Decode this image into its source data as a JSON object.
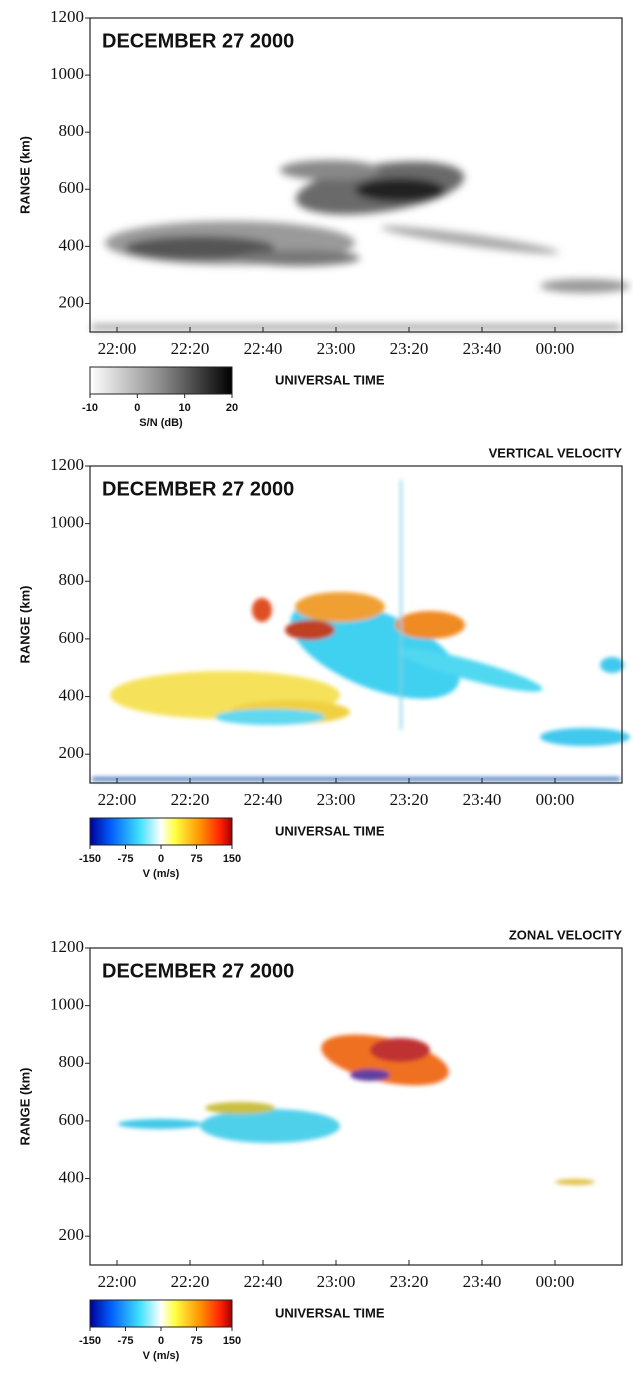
{
  "chart_data": [
    {
      "type": "range-time",
      "title": "DECEMBER 27 2000",
      "ylabel": "RANGE (km)",
      "xlabel": "UNIVERSAL TIME",
      "xticks": [
        "22:00",
        "22:20",
        "22:40",
        "23:00",
        "23:20",
        "23:40",
        "00:00"
      ],
      "ylim": [
        100,
        1200
      ],
      "yticks": [
        200,
        400,
        600,
        800,
        1000,
        1200
      ],
      "colorbar": {
        "label": "S/N (dB)",
        "lim": [
          -10,
          20
        ],
        "ticks": [
          -10,
          0,
          10,
          20
        ]
      }
    },
    {
      "type": "range-time",
      "subtitle": "VERTICAL VELOCITY",
      "title": "DECEMBER 27 2000",
      "ylabel": "RANGE (km)",
      "xlabel": "UNIVERSAL TIME",
      "xticks": [
        "22:00",
        "22:20",
        "22:40",
        "23:00",
        "23:20",
        "23:40",
        "00:00"
      ],
      "ylim": [
        100,
        1200
      ],
      "yticks": [
        200,
        400,
        600,
        800,
        1000,
        1200
      ],
      "colorbar": {
        "label": "V (m/s)",
        "lim": [
          -150,
          150
        ],
        "ticks": [
          -150,
          -75,
          0,
          75,
          150
        ]
      }
    },
    {
      "type": "range-time",
      "subtitle": "ZONAL VELOCITY",
      "title": "DECEMBER 27 2000",
      "ylabel": "RANGE (km)",
      "xlabel": "UNIVERSAL TIME",
      "xticks": [
        "22:00",
        "22:20",
        "22:40",
        "23:00",
        "23:20",
        "23:40",
        "00:00"
      ],
      "ylim": [
        100,
        1200
      ],
      "yticks": [
        200,
        400,
        600,
        800,
        1000,
        1200
      ],
      "colorbar": {
        "label": "V (m/s)",
        "lim": [
          -150,
          150
        ],
        "ticks": [
          -150,
          -75,
          0,
          75,
          150
        ]
      }
    }
  ]
}
